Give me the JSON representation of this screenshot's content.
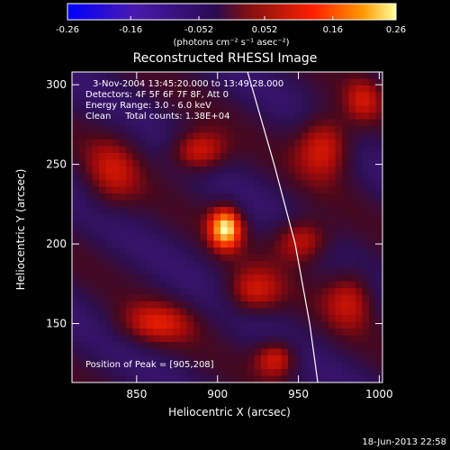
{
  "chart_data": {
    "type": "heatmap",
    "title": "Reconstructed RHESSI Image",
    "xlabel": "Heliocentric X (arcsec)",
    "ylabel": "Heliocentric Y (arcsec)",
    "xlim": [
      810,
      1002
    ],
    "ylim": [
      113,
      308
    ],
    "xticks": [
      "850",
      "900",
      "950",
      "1000"
    ],
    "yticks": [
      "150",
      "200",
      "250",
      "300"
    ],
    "xtick_values": [
      850,
      900,
      950,
      1000
    ],
    "ytick_values": [
      150,
      200,
      250,
      300
    ],
    "colorbar": {
      "range": [
        -0.26,
        0.26
      ],
      "ticks": [
        "-0.26",
        "-0.16",
        "-0.052",
        "0.052",
        "0.16",
        "0.26"
      ],
      "tick_values": [
        -0.26,
        -0.16,
        -0.052,
        0.052,
        0.16,
        0.26
      ],
      "unit_label": "(photons cm⁻² s⁻¹ asec⁻²)",
      "colors": [
        "#0000ff",
        "#5a1fa0",
        "#3a1060",
        "#c01010",
        "#ff6a00",
        "#ffff80"
      ]
    },
    "annotations": [
      "3-Nov-2004 13:45:20.000 to 13:49:28.000",
      "Detectors: 4F 5F 6F 7F 8F, Att 0",
      "Energy Range: 3.0 - 6.0 keV",
      "Clean     Total counts: 1.38E+04"
    ],
    "peak_label": "Position of Peak = [905,208]",
    "peak": [
      905,
      208
    ],
    "limb_color": "#ffffff",
    "sources": [
      {
        "x": 905,
        "y": 210,
        "amp": 0.28,
        "sx": 7,
        "sy": 9
      },
      {
        "x": 888,
        "y": 258,
        "amp": 0.16,
        "sx": 12,
        "sy": 9
      },
      {
        "x": 862,
        "y": 150,
        "amp": 0.12,
        "sx": 16,
        "sy": 9
      },
      {
        "x": 922,
        "y": 170,
        "amp": 0.13,
        "sx": 12,
        "sy": 10
      },
      {
        "x": 936,
        "y": 128,
        "amp": 0.15,
        "sx": 9,
        "sy": 8
      },
      {
        "x": 952,
        "y": 202,
        "amp": 0.15,
        "sx": 12,
        "sy": 10
      },
      {
        "x": 966,
        "y": 262,
        "amp": 0.16,
        "sx": 12,
        "sy": 14
      },
      {
        "x": 982,
        "y": 166,
        "amp": 0.12,
        "sx": 11,
        "sy": 13
      },
      {
        "x": 835,
        "y": 245,
        "amp": 0.1,
        "sx": 12,
        "sy": 16
      },
      {
        "x": 990,
        "y": 290,
        "amp": 0.1,
        "sx": 8,
        "sy": 10
      }
    ],
    "stripe": {
      "amp": 0.11,
      "angle_deg": 55,
      "period": 62,
      "phase": 0.6
    }
  },
  "footer": {
    "date": "18-Jun-2013 22:58"
  }
}
